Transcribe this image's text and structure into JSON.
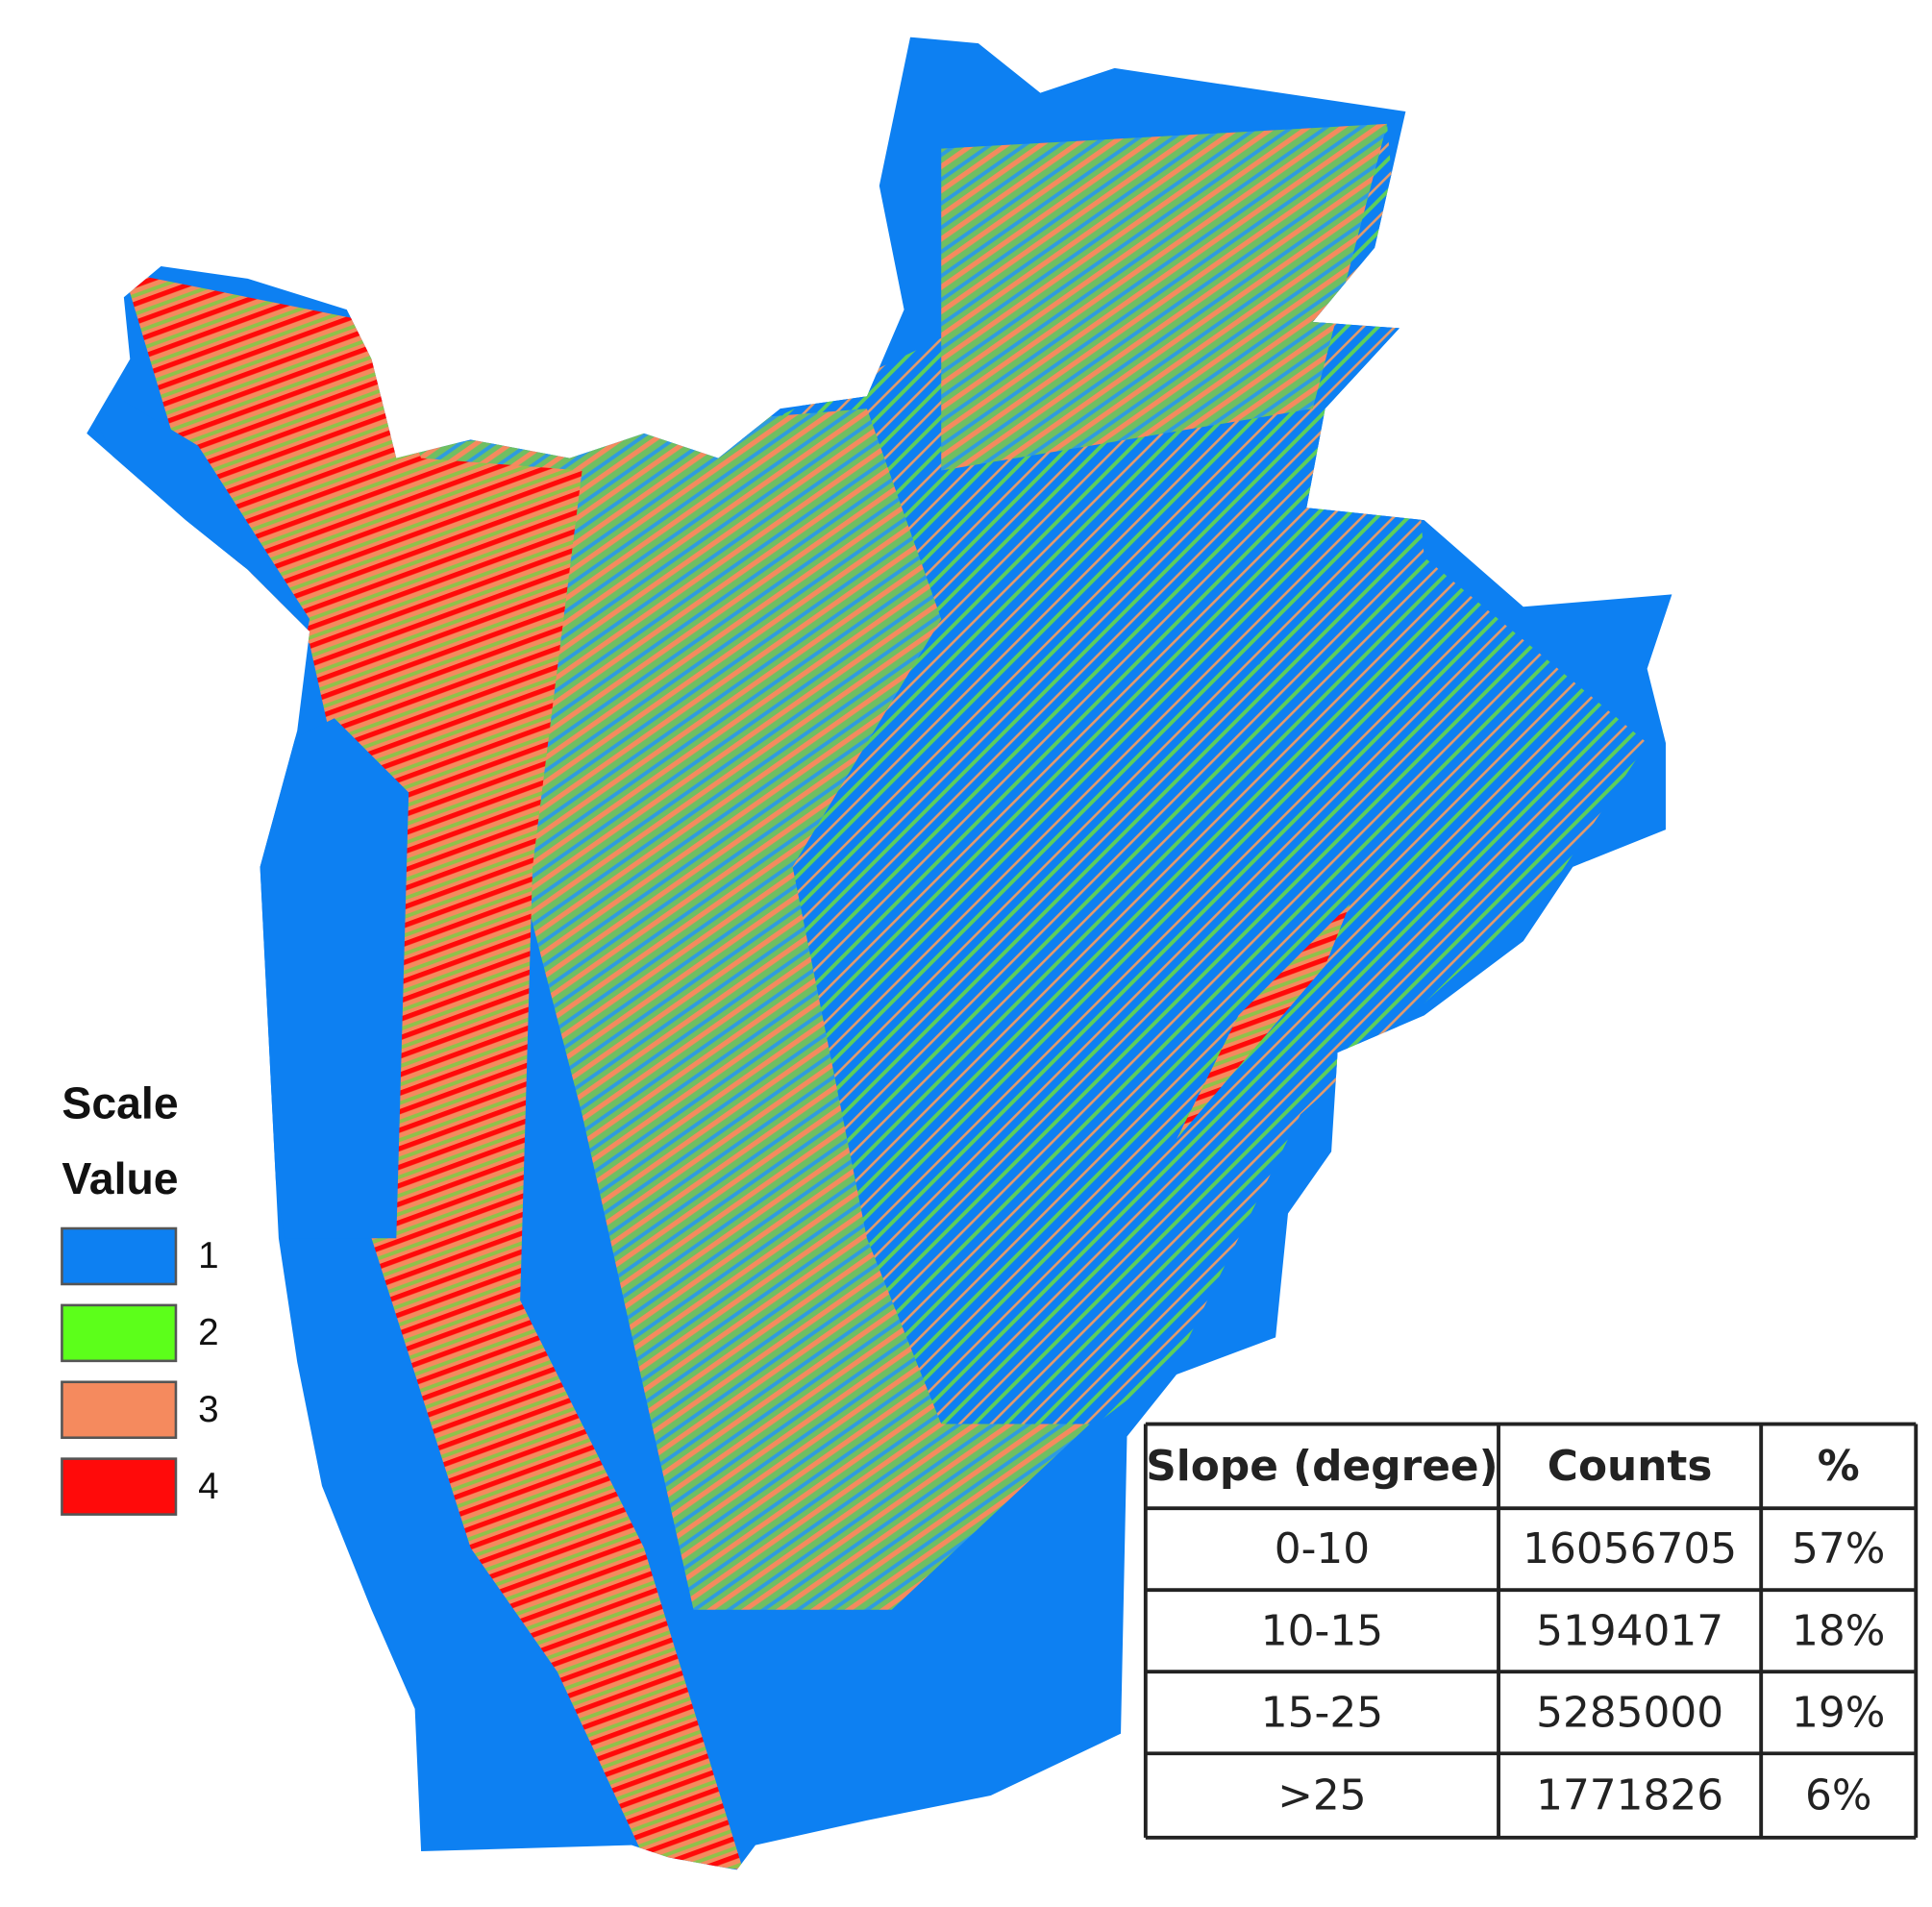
{
  "legend": {
    "title": "Scale",
    "subtitle": "Value",
    "items": [
      {
        "label": "1",
        "color": "#0d80f2"
      },
      {
        "label": "2",
        "color": "#5cff1a"
      },
      {
        "label": "3",
        "color": "#f58a5e"
      },
      {
        "label": "4",
        "color": "#ff0a0a"
      }
    ]
  },
  "table": {
    "header": [
      "Slope (degree)",
      "Counts",
      "%"
    ],
    "rows": [
      [
        "0-10",
        "16056705",
        "57%"
      ],
      [
        "10-15",
        "5194017",
        "18%"
      ],
      [
        "15-25",
        "5285000",
        "19%"
      ],
      [
        ">25",
        "1771826",
        "6%"
      ]
    ]
  }
}
